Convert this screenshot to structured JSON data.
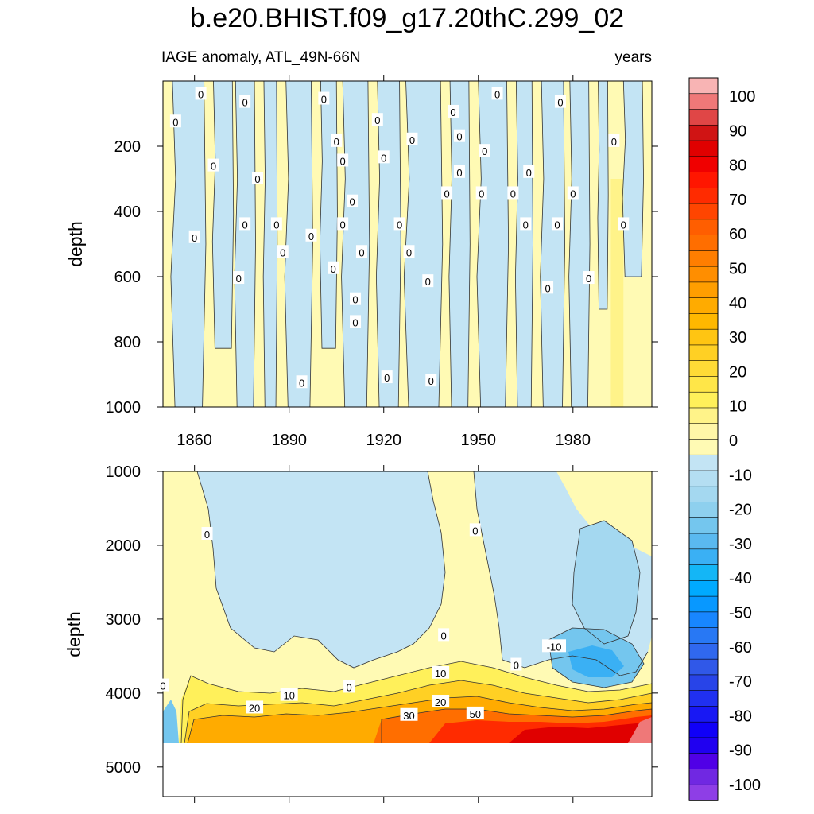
{
  "title": "b.e20.BHIST.f09_g17.20thC.299_02",
  "left_string": "IAGE anomaly, ATL_49N-66N",
  "right_string": "years",
  "chart_data": [
    {
      "type": "heatmap",
      "panel": "upper",
      "ylabel": "depth",
      "xlim": [
        1850,
        2005
      ],
      "ylim": [
        1000,
        0
      ],
      "x_ticks": [
        1860,
        1890,
        1920,
        1950,
        1980
      ],
      "y_ticks": [
        200,
        400,
        600,
        800,
        1000
      ],
      "grid": false,
      "contour_labels": [
        {
          "text": "0",
          "x": 1862,
          "y": 40
        },
        {
          "text": "0",
          "x": 1854,
          "y": 125
        },
        {
          "text": "0",
          "x": 1876,
          "y": 65
        },
        {
          "text": "0",
          "x": 1901,
          "y": 55
        },
        {
          "text": "0",
          "x": 1918,
          "y": 120
        },
        {
          "text": "0",
          "x": 1905,
          "y": 185
        },
        {
          "text": "0",
          "x": 1929,
          "y": 180
        },
        {
          "text": "0",
          "x": 1942,
          "y": 95
        },
        {
          "text": "0",
          "x": 1956,
          "y": 40
        },
        {
          "text": "0",
          "x": 1976,
          "y": 65
        },
        {
          "text": "0",
          "x": 1993,
          "y": 185
        },
        {
          "text": "0",
          "x": 1944,
          "y": 170
        },
        {
          "text": "0",
          "x": 1952,
          "y": 215
        },
        {
          "text": "0",
          "x": 1866,
          "y": 260
        },
        {
          "text": "0",
          "x": 1880,
          "y": 300
        },
        {
          "text": "0",
          "x": 1907,
          "y": 245
        },
        {
          "text": "0",
          "x": 1920,
          "y": 235
        },
        {
          "text": "0",
          "x": 1944,
          "y": 280
        },
        {
          "text": "0",
          "x": 1966,
          "y": 280
        },
        {
          "text": "0",
          "x": 1940,
          "y": 345
        },
        {
          "text": "0",
          "x": 1951,
          "y": 345
        },
        {
          "text": "0",
          "x": 1961,
          "y": 345
        },
        {
          "text": "0",
          "x": 1980,
          "y": 345
        },
        {
          "text": "0",
          "x": 1910,
          "y": 370
        },
        {
          "text": "0",
          "x": 1860,
          "y": 480
        },
        {
          "text": "0",
          "x": 1876,
          "y": 440
        },
        {
          "text": "0",
          "x": 1886,
          "y": 440
        },
        {
          "text": "0",
          "x": 1907,
          "y": 440
        },
        {
          "text": "0",
          "x": 1925,
          "y": 440
        },
        {
          "text": "0",
          "x": 1965,
          "y": 440
        },
        {
          "text": "0",
          "x": 1975,
          "y": 440
        },
        {
          "text": "0",
          "x": 1996,
          "y": 440
        },
        {
          "text": "0",
          "x": 1897,
          "y": 475
        },
        {
          "text": "0",
          "x": 1888,
          "y": 525
        },
        {
          "text": "0",
          "x": 1913,
          "y": 525
        },
        {
          "text": "0",
          "x": 1928,
          "y": 525
        },
        {
          "text": "0",
          "x": 1904,
          "y": 575
        },
        {
          "text": "0",
          "x": 1874,
          "y": 605
        },
        {
          "text": "0",
          "x": 1934,
          "y": 615
        },
        {
          "text": "0",
          "x": 1972,
          "y": 635
        },
        {
          "text": "0",
          "x": 1985,
          "y": 605
        },
        {
          "text": "0",
          "x": 1911,
          "y": 670
        },
        {
          "text": "0",
          "x": 1911,
          "y": 740
        },
        {
          "text": "0",
          "x": 1894,
          "y": 925
        },
        {
          "text": "0",
          "x": 1921,
          "y": 910
        },
        {
          "text": "0",
          "x": 1935,
          "y": 920
        }
      ]
    },
    {
      "type": "heatmap",
      "panel": "lower",
      "ylabel": "depth",
      "xlim": [
        1850,
        2005
      ],
      "ylim": [
        5400,
        1000
      ],
      "y_ticks": [
        1000,
        2000,
        3000,
        4000,
        5000
      ],
      "grid": false,
      "contour_labels": [
        {
          "text": "0",
          "x": 1864,
          "y": 1850
        },
        {
          "text": "0",
          "x": 1949,
          "y": 1800
        },
        {
          "text": "0",
          "x": 1939,
          "y": 3220
        },
        {
          "text": "0",
          "x": 1850,
          "y": 3900
        },
        {
          "text": "0",
          "x": 1909,
          "y": 3920
        },
        {
          "text": "0",
          "x": 1962,
          "y": 3620
        },
        {
          "text": "-10",
          "x": 1974,
          "y": 3370
        },
        {
          "text": "10",
          "x": 1938,
          "y": 3730
        },
        {
          "text": "10",
          "x": 1890,
          "y": 4030
        },
        {
          "text": "20",
          "x": 1879,
          "y": 4200
        },
        {
          "text": "20",
          "x": 1938,
          "y": 4120
        },
        {
          "text": "30",
          "x": 1928,
          "y": 4300
        },
        {
          "text": "50",
          "x": 1949,
          "y": 4280
        }
      ]
    }
  ],
  "colorbar": {
    "labels": [
      "100",
      "90",
      "80",
      "70",
      "60",
      "50",
      "40",
      "30",
      "20",
      "10",
      "0",
      "-10",
      "-20",
      "-30",
      "-40",
      "-50",
      "-60",
      "-70",
      "-80",
      "-90",
      "-100"
    ],
    "colors": [
      "#f8b4b4",
      "#ef7878",
      "#e04646",
      "#d01414",
      "#e00000",
      "#f00000",
      "#ff1600",
      "#ff2b00",
      "#ff4500",
      "#ff5e00",
      "#ff6e00",
      "#ff7e00",
      "#ff8e00",
      "#ff9e00",
      "#ffab00",
      "#ffb800",
      "#ffc512",
      "#ffd024",
      "#ffdb36",
      "#ffe648",
      "#fff05a",
      "#fff389",
      "#fff6a8",
      "#fffab4",
      "#c3e4f4",
      "#b4def2",
      "#a4d8f0",
      "#8ed0ee",
      "#74c6ee",
      "#5ab9f0",
      "#3ab0f4",
      "#14b6f6",
      "#00aaff",
      "#0898ff",
      "#1886ff",
      "#2878f4",
      "#3068ee",
      "#3058e8",
      "#2844e8",
      "#2030f0",
      "#1818f4",
      "#1000f8",
      "#2000f0",
      "#5000e6",
      "#7028e2",
      "#8e3ee6"
    ]
  }
}
